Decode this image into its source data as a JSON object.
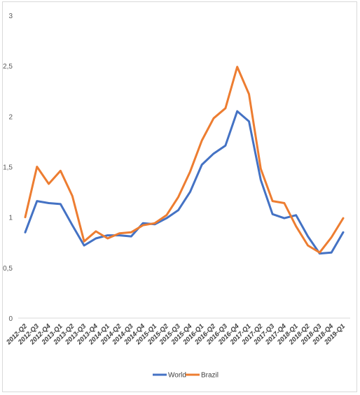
{
  "chart_data": {
    "type": "line",
    "categories": [
      "2012-Q2",
      "2012-Q3",
      "2012-Q4",
      "2013-Q1",
      "2013-Q2",
      "2013-Q3",
      "2013-Q4",
      "2014-Q1",
      "2014-Q2",
      "2014-Q3",
      "2014-Q4",
      "2015-Q1",
      "2015-Q2",
      "2015-Q3",
      "2015-Q4",
      "2016-Q1",
      "2016-Q2",
      "2016-Q3",
      "2016-Q4",
      "2017-Q1",
      "2017-Q2",
      "2017-Q3",
      "2017-Q4",
      "2018-Q1",
      "2018-Q2",
      "2018-Q3",
      "2018-Q4",
      "2019-Q1"
    ],
    "x_tick_labels": [
      "2012-Q2",
      "2012-Q3",
      "2012-Q4",
      "2013-Q1",
      "2013-Q2",
      "2013-Q3",
      "2013-Q4",
      "2014-Q1",
      "2014-Q2",
      "2014-Q3",
      "2014-Q4",
      "2015-Q1",
      "2015-Q2",
      "2015-Q3",
      "2015-Q4",
      "2016-Q1",
      "2016-Q2",
      "2016-Q3",
      "2016-Q4",
      "2017-Q1",
      "2017-Q2",
      "2017-Q3",
      "2017-Q4",
      "2018-Q1",
      "2018-Q2",
      "2018-Q3",
      "2018-Q4",
      "2019-Q1"
    ],
    "series": [
      {
        "name": "World",
        "color": "#4472c4",
        "values": [
          0.85,
          1.16,
          1.14,
          1.13,
          0.92,
          0.72,
          0.79,
          0.82,
          0.82,
          0.81,
          0.94,
          0.93,
          0.99,
          1.07,
          1.25,
          1.52,
          1.63,
          1.71,
          2.05,
          1.95,
          1.37,
          1.03,
          0.99,
          1.02,
          0.81,
          0.64,
          0.65,
          0.85
        ]
      },
      {
        "name": "Brazil",
        "color": "#ed7d31",
        "values": [
          1.0,
          1.5,
          1.33,
          1.46,
          1.21,
          0.76,
          0.86,
          0.79,
          0.84,
          0.85,
          0.92,
          0.94,
          1.02,
          1.2,
          1.45,
          1.76,
          1.98,
          2.08,
          2.49,
          2.22,
          1.48,
          1.16,
          1.14,
          0.91,
          0.72,
          0.65,
          0.8,
          0.99
        ]
      }
    ],
    "y_tick_labels": [
      "0",
      "0,5",
      "1",
      "1,5",
      "2",
      "2,5",
      "3"
    ],
    "y_ticks": [
      0,
      0.5,
      1,
      1.5,
      2,
      2.5,
      3
    ],
    "ylim": [
      0,
      3
    ],
    "title": "",
    "xlabel": "",
    "ylabel": "",
    "grid": false,
    "legend_position": "bottom"
  }
}
